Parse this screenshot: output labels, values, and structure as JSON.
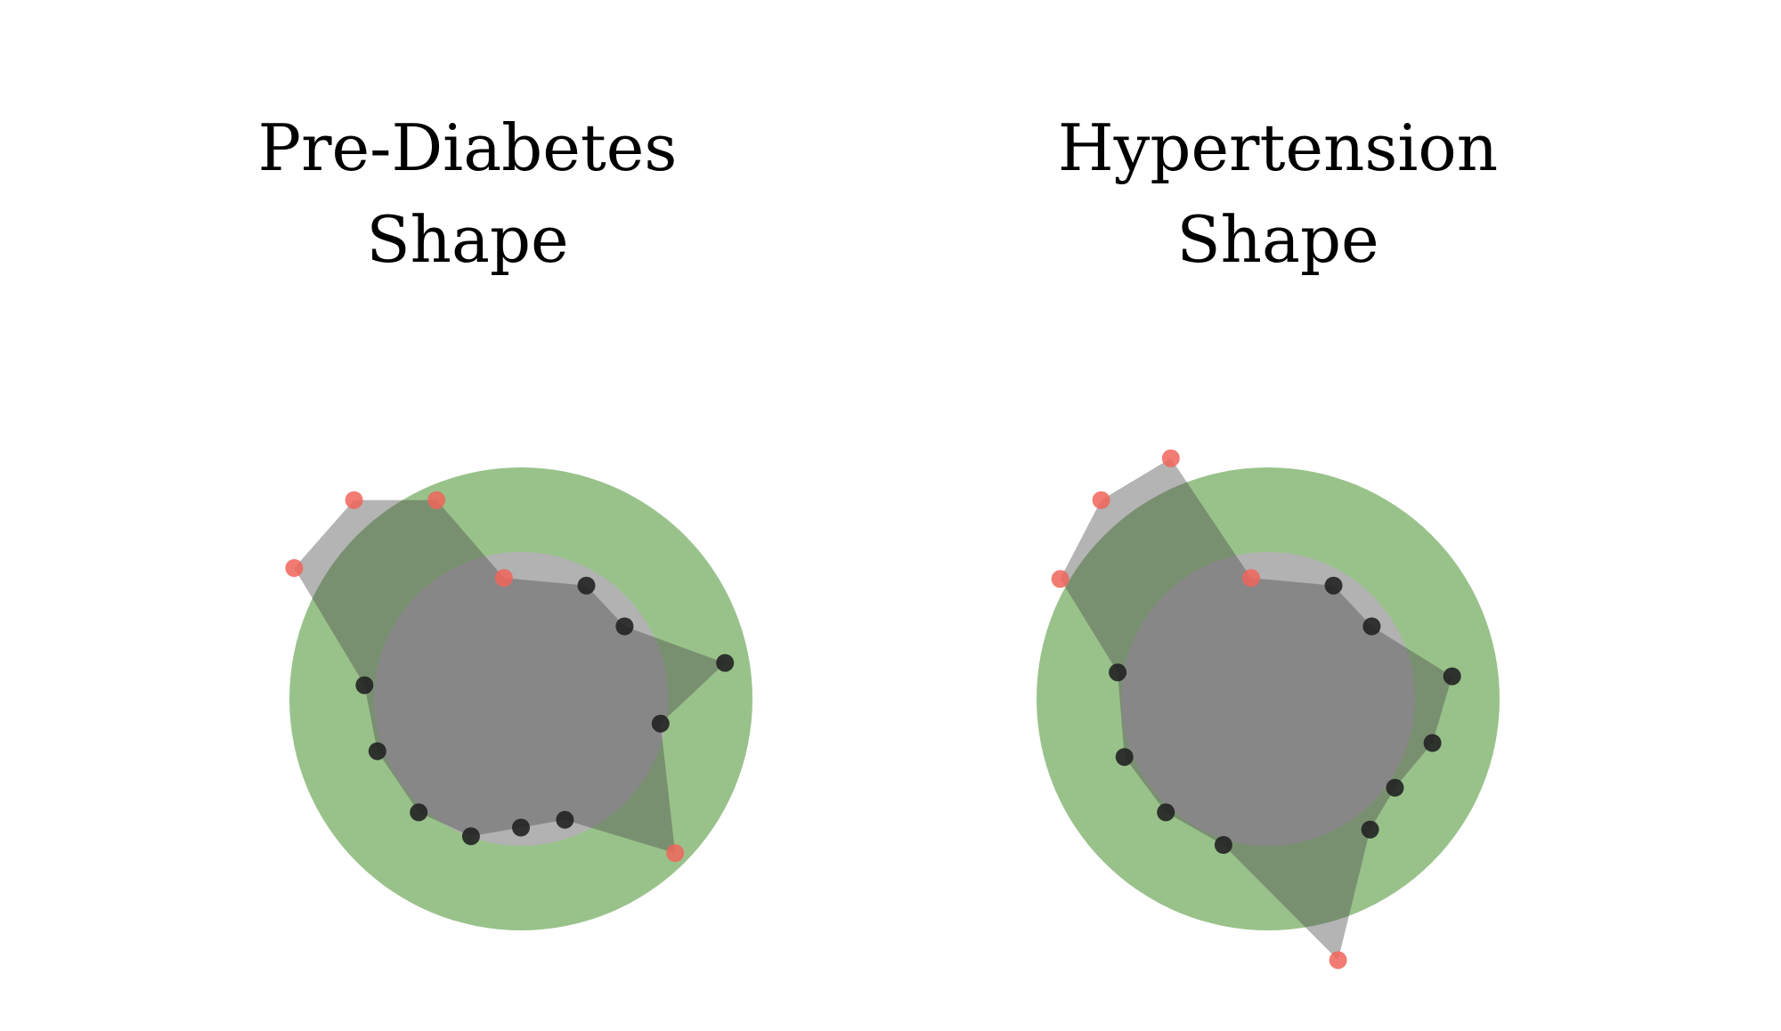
{
  "panels": [
    {
      "title": "Pre-Diabetes\nShape",
      "points": [
        {
          "angle": 30,
          "value": 0.6,
          "status": "normal"
        },
        {
          "angle": 55,
          "value": 0.58,
          "status": "normal"
        },
        {
          "angle": 80,
          "value": 0.95,
          "status": "normal"
        },
        {
          "angle": 100,
          "value": 0.65,
          "status": "normal"
        },
        {
          "angle": 135,
          "value": 1.0,
          "status": "out"
        },
        {
          "angle": 160,
          "value": 0.59,
          "status": "normal"
        },
        {
          "angle": 180,
          "value": 0.59,
          "status": "normal"
        },
        {
          "angle": 200,
          "value": 0.67,
          "status": "normal"
        },
        {
          "angle": 222,
          "value": 0.7,
          "status": "normal"
        },
        {
          "angle": 250,
          "value": 0.7,
          "status": "normal"
        },
        {
          "angle": 275,
          "value": 0.72,
          "status": "normal"
        },
        {
          "angle": 300,
          "value": 1.2,
          "status": "out"
        },
        {
          "angle": 320,
          "value": 1.19,
          "status": "out"
        },
        {
          "angle": 337,
          "value": 0.99,
          "status": "out"
        },
        {
          "angle": 352,
          "value": 0.56,
          "status": "out"
        }
      ]
    },
    {
      "title": "Hypertension\nShape",
      "points": [
        {
          "angle": 30,
          "value": 0.6,
          "status": "normal"
        },
        {
          "angle": 55,
          "value": 0.58,
          "status": "normal"
        },
        {
          "angle": 83,
          "value": 0.85,
          "status": "normal"
        },
        {
          "angle": 105,
          "value": 0.78,
          "status": "normal"
        },
        {
          "angle": 125,
          "value": 0.71,
          "status": "normal"
        },
        {
          "angle": 142,
          "value": 0.76,
          "status": "normal"
        },
        {
          "angle": 165,
          "value": 1.24,
          "status": "out"
        },
        {
          "angle": 197,
          "value": 0.7,
          "status": "normal"
        },
        {
          "angle": 222,
          "value": 0.7,
          "status": "normal"
        },
        {
          "angle": 248,
          "value": 0.71,
          "status": "normal"
        },
        {
          "angle": 280,
          "value": 0.7,
          "status": "normal"
        },
        {
          "angle": 300,
          "value": 1.1,
          "status": "out"
        },
        {
          "angle": 320,
          "value": 1.19,
          "status": "out"
        },
        {
          "angle": 338,
          "value": 1.19,
          "status": "out"
        },
        {
          "angle": 352,
          "value": 0.56,
          "status": "out"
        }
      ]
    }
  ],
  "colors": {
    "outer_ring": "#99c28b",
    "inner_disc": "#b2b2b2",
    "shape_fill": "#4d4d4d",
    "shape_opacity": 0.42,
    "point_normal": "#222222",
    "point_out": "#f0655a"
  }
}
